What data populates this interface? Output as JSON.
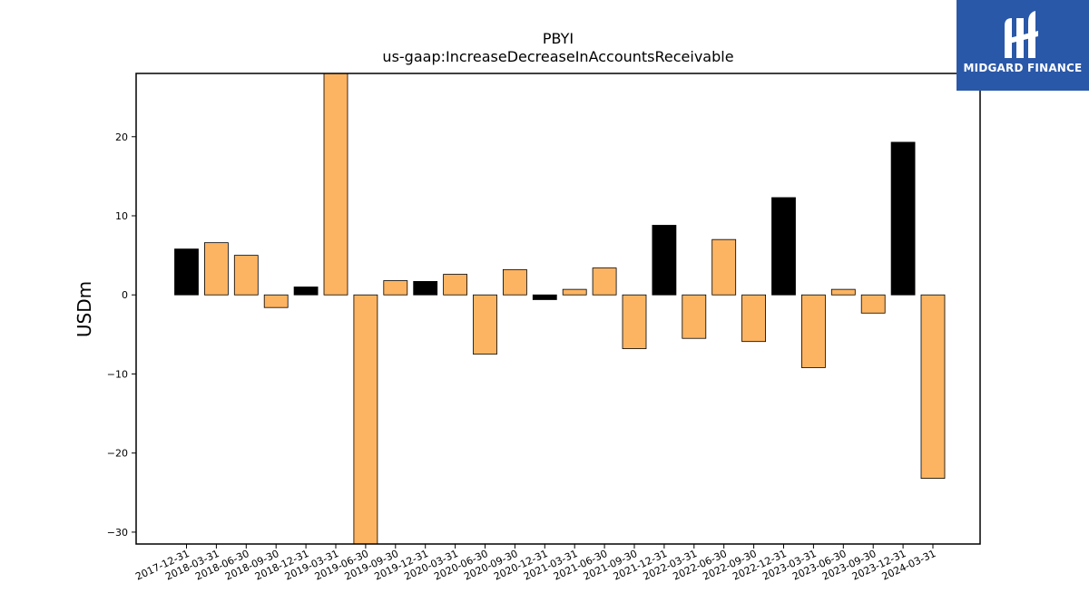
{
  "brand": {
    "name": "MIDGARD FINANCE",
    "logo_icon": "midgard-m-logo-icon",
    "color": "#2a58a8"
  },
  "chart_data": {
    "type": "bar",
    "title": "PBYI",
    "subtitle": "us-gaap:IncreaseDecreaseInAccountsReceivable",
    "xlabel": "",
    "ylabel": "USDm",
    "ylim": [
      -31.5,
      28
    ],
    "yticks": [
      -30,
      -20,
      -10,
      0,
      10,
      20
    ],
    "ytick_labels": [
      "−30",
      "−20",
      "−10",
      "0",
      "10",
      "20"
    ],
    "grid": false,
    "legend": "none",
    "colors": {
      "q4": "#000000",
      "other": "#fdb462",
      "edge": "#000000"
    },
    "categories": [
      "2017-12-31",
      "2018-03-31",
      "2018-06-30",
      "2018-09-30",
      "2018-12-31",
      "2019-03-31",
      "2019-06-30",
      "2019-09-30",
      "2019-12-31",
      "2020-03-31",
      "2020-06-30",
      "2020-09-30",
      "2020-12-31",
      "2021-03-31",
      "2021-06-30",
      "2021-09-30",
      "2021-12-31",
      "2022-03-31",
      "2022-06-30",
      "2022-09-30",
      "2022-12-31",
      "2023-03-31",
      "2023-06-30",
      "2023-09-30",
      "2023-12-31",
      "2024-03-31"
    ],
    "values": [
      5.8,
      6.6,
      5.0,
      -1.6,
      1.0,
      28.0,
      -31.5,
      1.8,
      1.7,
      2.6,
      -7.5,
      3.2,
      -0.6,
      0.7,
      3.4,
      -6.8,
      8.8,
      -5.5,
      7.0,
      -5.9,
      12.3,
      -9.2,
      0.7,
      -2.3,
      19.3,
      -23.2
    ]
  }
}
